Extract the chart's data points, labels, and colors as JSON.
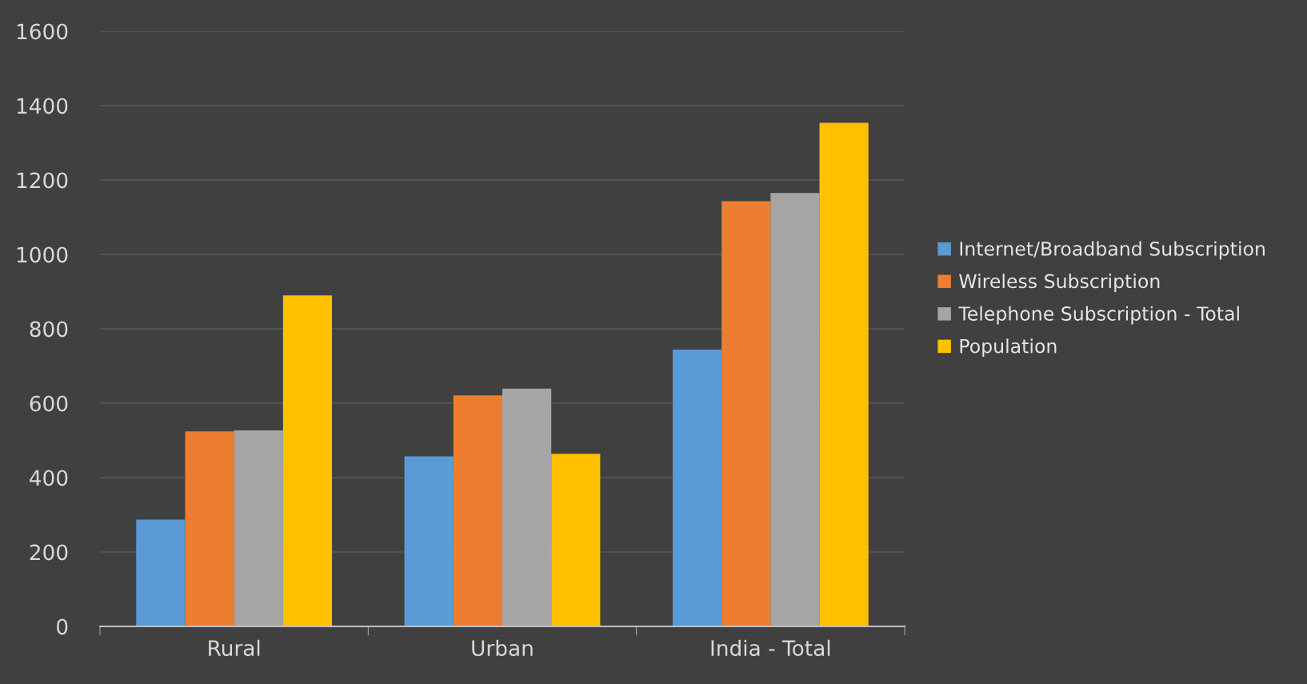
{
  "chart_data": {
    "type": "bar",
    "categories": [
      "Rural",
      "Urban",
      "India - Total"
    ],
    "series": [
      {
        "name": "Internet/Broadband Subscription",
        "color": "#5b9bd5",
        "values": [
          287,
          457,
          744
        ]
      },
      {
        "name": "Wireless Subscription",
        "color": "#ed7d31",
        "values": [
          524,
          621,
          1143
        ]
      },
      {
        "name": "Telephone Subscription - Total",
        "color": "#a5a5a5",
        "values": [
          527,
          639,
          1165
        ]
      },
      {
        "name": "Population",
        "color": "#ffc000",
        "values": [
          890,
          464,
          1354
        ]
      }
    ],
    "ylim": [
      0,
      1600
    ],
    "yticks": [
      0,
      200,
      400,
      600,
      800,
      1000,
      1200,
      1400,
      1600
    ],
    "grid": "y",
    "legend": "right"
  }
}
